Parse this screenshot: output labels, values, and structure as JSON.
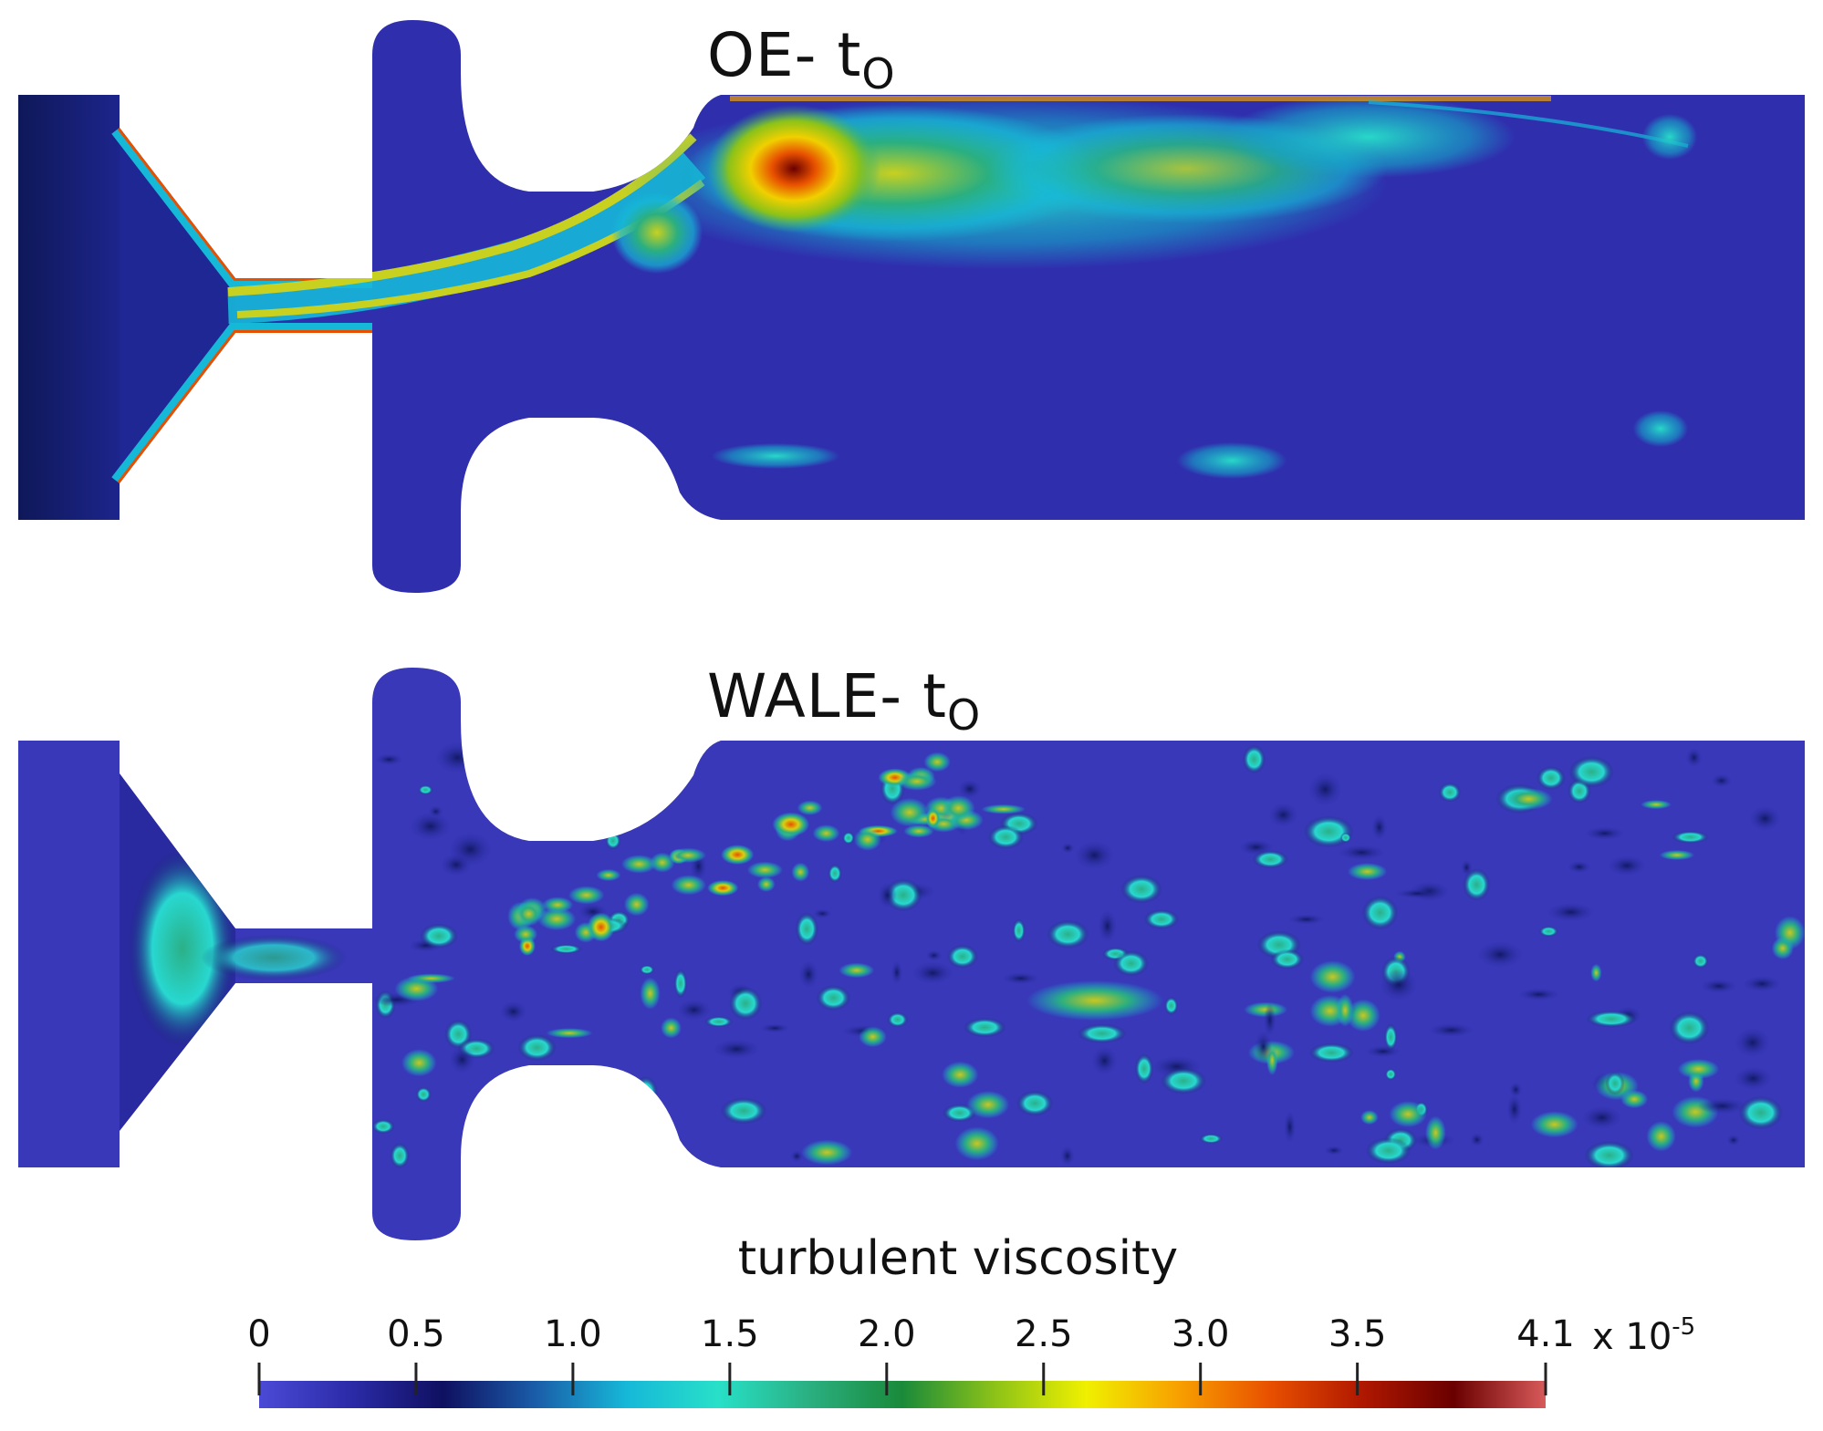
{
  "panels": [
    {
      "title_main": "OE- t",
      "title_sub": "O"
    },
    {
      "title_main": "WALE- t",
      "title_sub": "O"
    }
  ],
  "colorbar": {
    "title": "turbulent viscosity",
    "ticks": [
      {
        "value": 0,
        "label": "0"
      },
      {
        "value": 0.5,
        "label": "0.5"
      },
      {
        "value": 1.0,
        "label": "1.0"
      },
      {
        "value": 1.5,
        "label": "1.5"
      },
      {
        "value": 2.0,
        "label": "2.0"
      },
      {
        "value": 2.5,
        "label": "2.5"
      },
      {
        "value": 3.0,
        "label": "3.0"
      },
      {
        "value": 3.5,
        "label": "3.5"
      },
      {
        "value": 4.1,
        "label": "4.1"
      }
    ],
    "min": 0,
    "max": 4.1,
    "exponent_prefix": "x 10",
    "exponent": "-5",
    "colors": [
      "#4a4ad6",
      "#2b2ba8",
      "#0f1060",
      "#1a5ca8",
      "#16b8d8",
      "#28e0c8",
      "#2aaf80",
      "#1a8a3a",
      "#8cc218",
      "#f0f000",
      "#f8a000",
      "#e85000",
      "#b01800",
      "#6a0000",
      "#d85a5a"
    ]
  }
}
